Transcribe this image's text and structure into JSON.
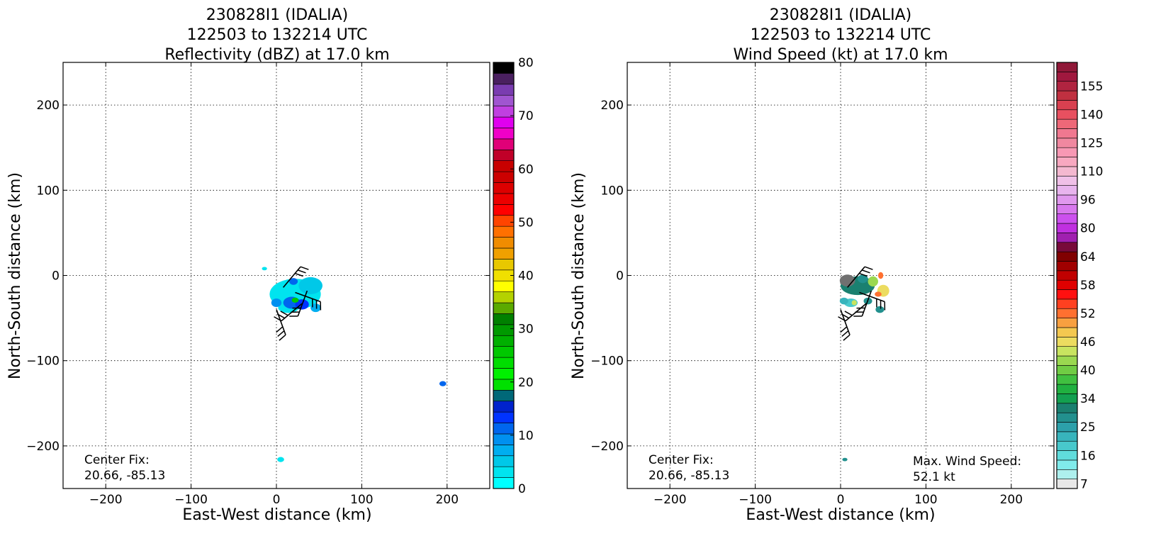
{
  "chart_data": [
    {
      "type": "heatmap",
      "title_lines": [
        "230828I1 (IDALIA)",
        "122503 to 132214 UTC",
        "Reflectivity (dBZ) at 17.0 km"
      ],
      "xlabel": "East-West distance (km)",
      "ylabel": "North-South distance (km)",
      "xlim": [
        -250,
        250
      ],
      "ylim": [
        -250,
        250
      ],
      "xticks": [
        -200,
        -100,
        0,
        100,
        200
      ],
      "yticks": [
        -200,
        -100,
        0,
        100,
        200
      ],
      "xtick_labels": [
        "−200",
        "−100",
        "0",
        "100",
        "200"
      ],
      "ytick_labels": [
        "−200",
        "−100",
        "0",
        "100",
        "200"
      ],
      "grid": true,
      "annotation_lines": [
        "Center Fix:",
        "20.66, -85.13"
      ],
      "colorbar": {
        "min": 0,
        "max": 80,
        "ticks": [
          0,
          10,
          20,
          30,
          40,
          50,
          60,
          70,
          80
        ],
        "tick_labels": [
          "0",
          "10",
          "20",
          "30",
          "40",
          "50",
          "60",
          "70",
          "80"
        ],
        "colors": [
          "#00ffff",
          "#00e4ef",
          "#00c8e8",
          "#00aef0",
          "#0090f0",
          "#0066ee",
          "#0033ff",
          "#0022cc",
          "#006878",
          "#00e000",
          "#00f000",
          "#00dd00",
          "#00c800",
          "#00b000",
          "#009a00",
          "#008000",
          "#5aaa00",
          "#b4d200",
          "#ffff00",
          "#f0e000",
          "#e8c800",
          "#f0a000",
          "#f08c00",
          "#ff7000",
          "#ff4400",
          "#ff0000",
          "#ec0000",
          "#dd0000",
          "#cc0000",
          "#c80000",
          "#c00028",
          "#e00078",
          "#f000c8",
          "#e000ef",
          "#c040e0",
          "#a055d0",
          "#7a3cb0",
          "#4a2060",
          "#000000"
        ]
      },
      "regions": [
        {
          "x": 22,
          "y": -22,
          "rx": 30,
          "ry": 18,
          "color": "#00e4ef"
        },
        {
          "x": 14,
          "y": -38,
          "rx": 12,
          "ry": 6,
          "color": "#00e4ef"
        },
        {
          "x": 40,
          "y": -12,
          "rx": 14,
          "ry": 10,
          "color": "#00c8e8"
        },
        {
          "x": 18,
          "y": -32,
          "rx": 10,
          "ry": 7,
          "color": "#0066ee"
        },
        {
          "x": 30,
          "y": -34,
          "rx": 8,
          "ry": 6,
          "color": "#0033ff"
        },
        {
          "x": 0,
          "y": -32,
          "rx": 6,
          "ry": 5,
          "color": "#0090f0"
        },
        {
          "x": 20,
          "y": -7,
          "rx": 5,
          "ry": 4,
          "color": "#0066ee"
        },
        {
          "x": 46,
          "y": -38,
          "rx": 6,
          "ry": 5,
          "color": "#00aef0"
        },
        {
          "x": 22,
          "y": -29,
          "rx": 4,
          "ry": 3,
          "color": "#00c800"
        },
        {
          "x": 195,
          "y": -127,
          "rx": 4,
          "ry": 3,
          "color": "#0066ee"
        },
        {
          "x": 5,
          "y": -216,
          "rx": 4,
          "ry": 3,
          "color": "#00e4ef"
        },
        {
          "x": -14,
          "y": 8,
          "rx": 3,
          "ry": 2,
          "color": "#00e4ef"
        }
      ],
      "barbs": [
        {
          "x": 0,
          "y": -40,
          "dir": 160
        },
        {
          "x": 30,
          "y": -33,
          "dir": 230
        },
        {
          "x": 22,
          "y": -20,
          "dir": 110
        },
        {
          "x": 8,
          "y": -14,
          "dir": 40
        },
        {
          "x": 36,
          "y": -18,
          "dir": 200
        }
      ]
    },
    {
      "type": "heatmap",
      "title_lines": [
        "230828I1 (IDALIA)",
        "122503 to 132214 UTC",
        "Wind Speed (kt) at 17.0 km"
      ],
      "xlabel": "East-West distance (km)",
      "ylabel": "North-South distance (km)",
      "xlim": [
        -250,
        250
      ],
      "ylim": [
        -250,
        250
      ],
      "xticks": [
        -200,
        -100,
        0,
        100,
        200
      ],
      "yticks": [
        -200,
        -100,
        0,
        100,
        200
      ],
      "xtick_labels": [
        "−200",
        "−100",
        "0",
        "100",
        "200"
      ],
      "ytick_labels": [
        "−200",
        "−100",
        "0",
        "100",
        "200"
      ],
      "grid": true,
      "annotation_lines": [
        "Center Fix:",
        "20.66, -85.13"
      ],
      "max_wind_lines": [
        "Max. Wind Speed:",
        "52.1 kt"
      ],
      "colorbar": {
        "min": 0,
        "max": 160,
        "tick_labels_list": [
          "7",
          "16",
          "25",
          "34",
          "40",
          "46",
          "52",
          "58",
          "64",
          "80",
          "96",
          "110",
          "125",
          "140",
          "155"
        ],
        "tick_segment_positions": [
          0.5,
          3.5,
          6.5,
          9.5,
          12.5,
          15.5,
          18.5,
          21.5,
          24.5,
          27.5,
          30.5,
          33.5,
          36.5,
          39.5,
          42.5
        ],
        "colors": [
          "#e8e8e8",
          "#aef0ee",
          "#80ebeb",
          "#60dcdc",
          "#48c8cc",
          "#38b4bc",
          "#2ca0aa",
          "#22908e",
          "#1a8070",
          "#13a050",
          "#20b040",
          "#40c040",
          "#70cc44",
          "#9ad850",
          "#c8e460",
          "#ecdc60",
          "#f4c850",
          "#f8a040",
          "#ff7030",
          "#ff4020",
          "#ff1010",
          "#e00000",
          "#c00000",
          "#a00000",
          "#800000",
          "#780a3a",
          "#a020b0",
          "#c030e0",
          "#cc50ee",
          "#d878ee",
          "#e098ee",
          "#e8b4ee",
          "#f0c0e8",
          "#f4b8d0",
          "#f8a8c0",
          "#f898b4",
          "#f088a0",
          "#f07890",
          "#ee6878",
          "#e85060",
          "#d84050",
          "#c03040",
          "#b02440",
          "#a0183e",
          "#901838"
        ]
      },
      "regions": [
        {
          "x": 20,
          "y": -12,
          "rx": 20,
          "ry": 11,
          "color": "#1a8070"
        },
        {
          "x": 8,
          "y": -6,
          "rx": 9,
          "ry": 7,
          "color": "#707070"
        },
        {
          "x": 26,
          "y": -4,
          "rx": 6,
          "ry": 5,
          "color": "#22908e"
        },
        {
          "x": 38,
          "y": -7,
          "rx": 6,
          "ry": 6,
          "color": "#9ad850"
        },
        {
          "x": 47,
          "y": 0,
          "rx": 3,
          "ry": 4,
          "color": "#ff7030"
        },
        {
          "x": 50,
          "y": -18,
          "rx": 7,
          "ry": 7,
          "color": "#ecdc60"
        },
        {
          "x": 44,
          "y": -22,
          "rx": 4,
          "ry": 3,
          "color": "#ff7030"
        },
        {
          "x": 12,
          "y": -32,
          "rx": 8,
          "ry": 5,
          "color": "#48c8cc"
        },
        {
          "x": 4,
          "y": -30,
          "rx": 5,
          "ry": 4,
          "color": "#38b4bc"
        },
        {
          "x": 32,
          "y": -30,
          "rx": 5,
          "ry": 4,
          "color": "#22908e"
        },
        {
          "x": 46,
          "y": -40,
          "rx": 5,
          "ry": 4,
          "color": "#22908e"
        },
        {
          "x": 16,
          "y": -32,
          "rx": 3,
          "ry": 3,
          "color": "#c8e460"
        },
        {
          "x": 5,
          "y": -216,
          "rx": 3,
          "ry": 2,
          "color": "#22908e"
        }
      ],
      "barbs": [
        {
          "x": 0,
          "y": -40,
          "dir": 160
        },
        {
          "x": 30,
          "y": -33,
          "dir": 230
        },
        {
          "x": 22,
          "y": -20,
          "dir": 110
        },
        {
          "x": 8,
          "y": -14,
          "dir": 40
        },
        {
          "x": 36,
          "y": -18,
          "dir": 200
        }
      ]
    }
  ]
}
